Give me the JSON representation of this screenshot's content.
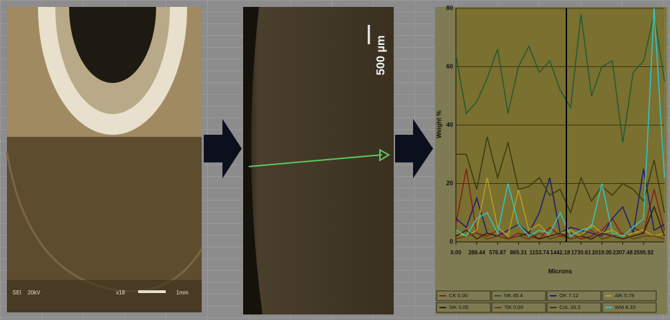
{
  "chart_data": {
    "type": "line",
    "y_label": "Weight %",
    "x_label": "Microns",
    "x": [
      0,
      144.22,
      288.44,
      432.66,
      576.87,
      721.09,
      865.31,
      1009.53,
      1153.74,
      1297.96,
      1442.18,
      1586.4,
      1730.61,
      1874.83,
      2019.05,
      2163.27,
      2307.48,
      2451.7,
      2595.92,
      2740.14,
      2884.36
    ],
    "xlim": [
      0,
      2884.36
    ],
    "xticks": [
      {
        "value": 0,
        "label": "0.00"
      },
      288.44,
      576.87,
      865.31,
      1153.74,
      1442.18,
      1730.61,
      2019.05,
      2307.48,
      2595.92
    ],
    "ylim": [
      0,
      80
    ],
    "yticks": [
      0,
      20,
      40,
      60,
      80
    ],
    "grid": true,
    "series": [
      {
        "name": "CK 0.00",
        "color": "#8b1a1a",
        "values": [
          6,
          25,
          3,
          2,
          4,
          1,
          3,
          2,
          1,
          5,
          2,
          3,
          1,
          2,
          4,
          8,
          2,
          5,
          3,
          18,
          4
        ]
      },
      {
        "name": "NK 45.4",
        "color": "#1f5a32",
        "values": [
          64,
          44,
          48,
          56,
          66,
          44,
          60,
          67,
          58,
          62,
          52,
          46,
          78,
          50,
          60,
          62,
          34,
          58,
          62,
          78,
          55
        ]
      },
      {
        "name": "OK 7.12",
        "color": "#1a1a7a",
        "values": [
          8,
          5,
          15,
          3,
          2,
          4,
          6,
          3,
          10,
          22,
          3,
          5,
          4,
          3,
          2,
          8,
          12,
          3,
          25,
          4,
          6
        ]
      },
      {
        "name": "AlK 5.78",
        "color": "#b8a020",
        "values": [
          3,
          2,
          4,
          22,
          5,
          2,
          18,
          4,
          6,
          2,
          3,
          4,
          2,
          6,
          3,
          4,
          2,
          3,
          4,
          2,
          3
        ]
      },
      {
        "name": "SiK 0.00",
        "color": "#2a2010",
        "values": [
          2,
          4,
          1,
          3,
          2,
          1,
          2,
          3,
          1,
          2,
          3,
          1,
          2,
          1,
          3,
          2,
          1,
          2,
          3,
          12,
          2
        ]
      },
      {
        "name": "TiK 0.00",
        "color": "#6a3a18",
        "values": [
          1,
          2,
          3,
          1,
          2,
          1,
          2,
          1,
          3,
          1,
          2,
          1,
          2,
          4,
          1,
          2,
          3,
          1,
          2,
          2,
          1
        ]
      },
      {
        "name": "CoL 33.3",
        "color": "#3a3a10",
        "values": [
          30,
          30,
          18,
          36,
          22,
          34,
          18,
          19,
          22,
          16,
          18,
          10,
          22,
          14,
          19,
          16,
          20,
          18,
          14,
          28,
          10
        ]
      },
      {
        "name": "WM 8.33",
        "color": "#30c8c8",
        "values": [
          4,
          2,
          8,
          10,
          3,
          20,
          6,
          2,
          4,
          3,
          10,
          2,
          4,
          5,
          20,
          3,
          2,
          5,
          8,
          80,
          22
        ]
      }
    ]
  },
  "micrograph_1": {
    "labels": [
      "SEI",
      "20kV",
      "x18",
      "1mm"
    ]
  },
  "micrograph_2": {
    "scale_bar": "500 µm"
  }
}
